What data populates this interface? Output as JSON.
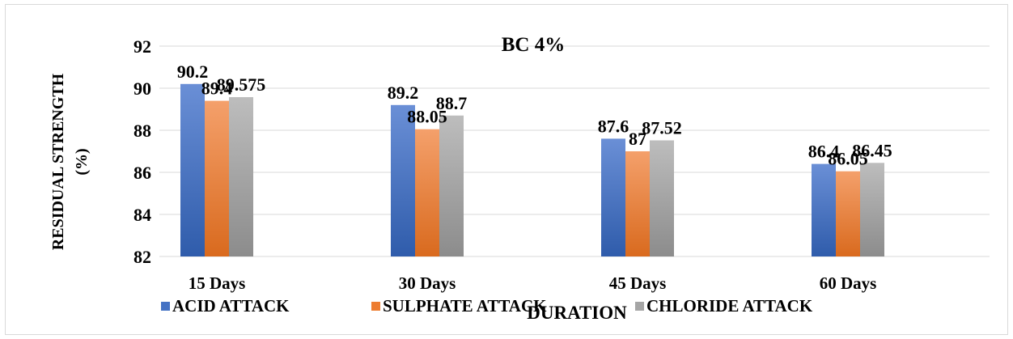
{
  "chart_data": {
    "type": "bar",
    "title": "BC 4%",
    "xlabel": "DURATION",
    "ylabel": "RESIDUAL STRENGTH (%)",
    "ylabel_lines": [
      "RESIDUAL STRENGTH",
      "(%)"
    ],
    "categories": [
      "15 Days",
      "30 Days",
      "45 Days",
      "60 Days"
    ],
    "ylim": [
      82,
      92
    ],
    "yticks": [
      82,
      84,
      86,
      88,
      90,
      92
    ],
    "grid": true,
    "legend_position": "bottom",
    "series": [
      {
        "name": "ACID ATTACK",
        "values": [
          90.2,
          89.2,
          87.6,
          86.4
        ],
        "labels": [
          "90.2",
          "89.2",
          "87.6",
          "86.4"
        ],
        "color": "#4472c4",
        "color_light": "#6a8fd6",
        "color_dark": "#2f5cab"
      },
      {
        "name": "SULPHATE ATTACK",
        "values": [
          89.4,
          88.05,
          87,
          86.05
        ],
        "labels": [
          "89.4",
          "88.05",
          "87",
          "86.05"
        ],
        "color": "#ed7d31",
        "color_light": "#f4a06b",
        "color_dark": "#d96a1e"
      },
      {
        "name": "CHLORIDE ATTACK",
        "values": [
          89.575,
          88.7,
          87.52,
          86.45
        ],
        "labels": [
          "89.575",
          "88.7",
          "87.52",
          "86.45"
        ],
        "color": "#a5a5a5",
        "color_light": "#bdbdbd",
        "color_dark": "#8c8c8c"
      }
    ]
  }
}
